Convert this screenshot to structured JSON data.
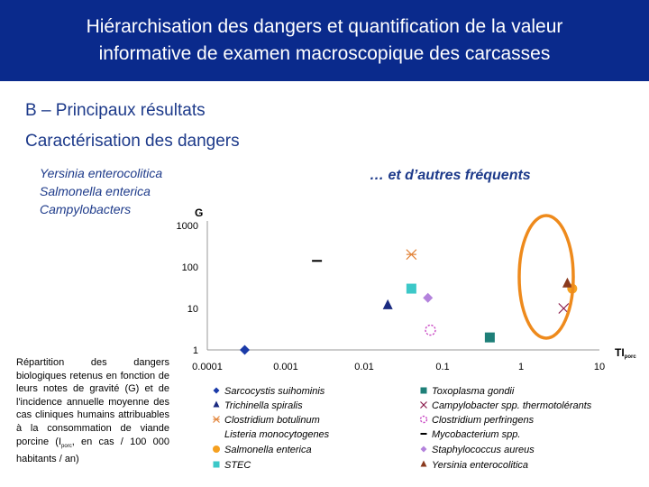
{
  "header": {
    "line1": "Hiérarchisation des dangers et quantification de la valeur",
    "line2": "informative de examen macroscopique des carcasses"
  },
  "section": {
    "title": "B – Principaux résultats",
    "subtitle": "Caractérisation des dangers"
  },
  "left_list": [
    "Yersinia enterocolitica",
    "Salmonella enterica",
    "Campylobacters"
  ],
  "right_label": "… et d’autres fréquents",
  "caption": {
    "part1": "Répartition des dangers biologiques retenus en fonction de leurs notes de gravité (G) et de l'incidence annuelle moyenne des cas cliniques humains attribuables à la consommation de viande porcine (I",
    "sub": "porc",
    "part2": ", en cas / 100 000 habitants / an)"
  },
  "colors": {
    "header_bg": "#0a2a8c",
    "title_text": "#1d3a8a",
    "highlight_circle": "#ee8a1c"
  },
  "chart_data": {
    "type": "scatter",
    "xscale": "log",
    "yscale": "log",
    "xlim": [
      0.0001,
      10
    ],
    "ylim": [
      1,
      1000
    ],
    "xlabel": "TI",
    "xlabel_sub": "porc",
    "ylabel": "G",
    "xticks": [
      "0.0001",
      "0.001",
      "0.01",
      "0.1",
      "1",
      "10"
    ],
    "yticks": [
      "1000",
      "100",
      "10",
      "1"
    ],
    "legend_position": "bottom",
    "series": [
      {
        "name": "Sarcocystis suihominis",
        "marker": "diamond",
        "color": "#1a3aa8",
        "x": 0.0003,
        "y": 1
      },
      {
        "name": "Toxoplasma gondii",
        "marker": "square",
        "color": "#1e7f78",
        "x": 0.4,
        "y": 2
      },
      {
        "name": "Trichinella spiralis",
        "marker": "triangle",
        "color": "#1a2a80",
        "x": 0.02,
        "y": 12
      },
      {
        "name": "Campylobacter spp. thermotolérants",
        "marker": "x",
        "color": "#8a1a4a",
        "x": 3.5,
        "y": 10
      },
      {
        "name": "Clostridium botulinum",
        "marker": "asterisk",
        "color": "#e2843a",
        "x": 0.04,
        "y": 200
      },
      {
        "name": "Clostridium perfringens",
        "marker": "dashed-circle",
        "color": "#c94ac4",
        "x": 0.07,
        "y": 3
      },
      {
        "name": "Listeria monocytogenes",
        "marker": "none",
        "color": "#6a9fd8",
        "x": null,
        "y": null
      },
      {
        "name": "Mycobacterium spp.",
        "marker": "dash",
        "color": "#000000",
        "x": 0.0025,
        "y": 140
      },
      {
        "name": "Salmonella enterica",
        "marker": "circle",
        "color": "#f5a020",
        "x": 4.5,
        "y": 30
      },
      {
        "name": "Staphylococcus aureus",
        "marker": "diamond",
        "color": "#b382dc",
        "x": 0.065,
        "y": 18
      },
      {
        "name": "STEC",
        "marker": "square",
        "color": "#3cc8c8",
        "x": 0.04,
        "y": 30
      },
      {
        "name": "Yersinia enterocolitica",
        "marker": "triangle",
        "color": "#8a3a1e",
        "x": 3.9,
        "y": 40
      }
    ]
  }
}
